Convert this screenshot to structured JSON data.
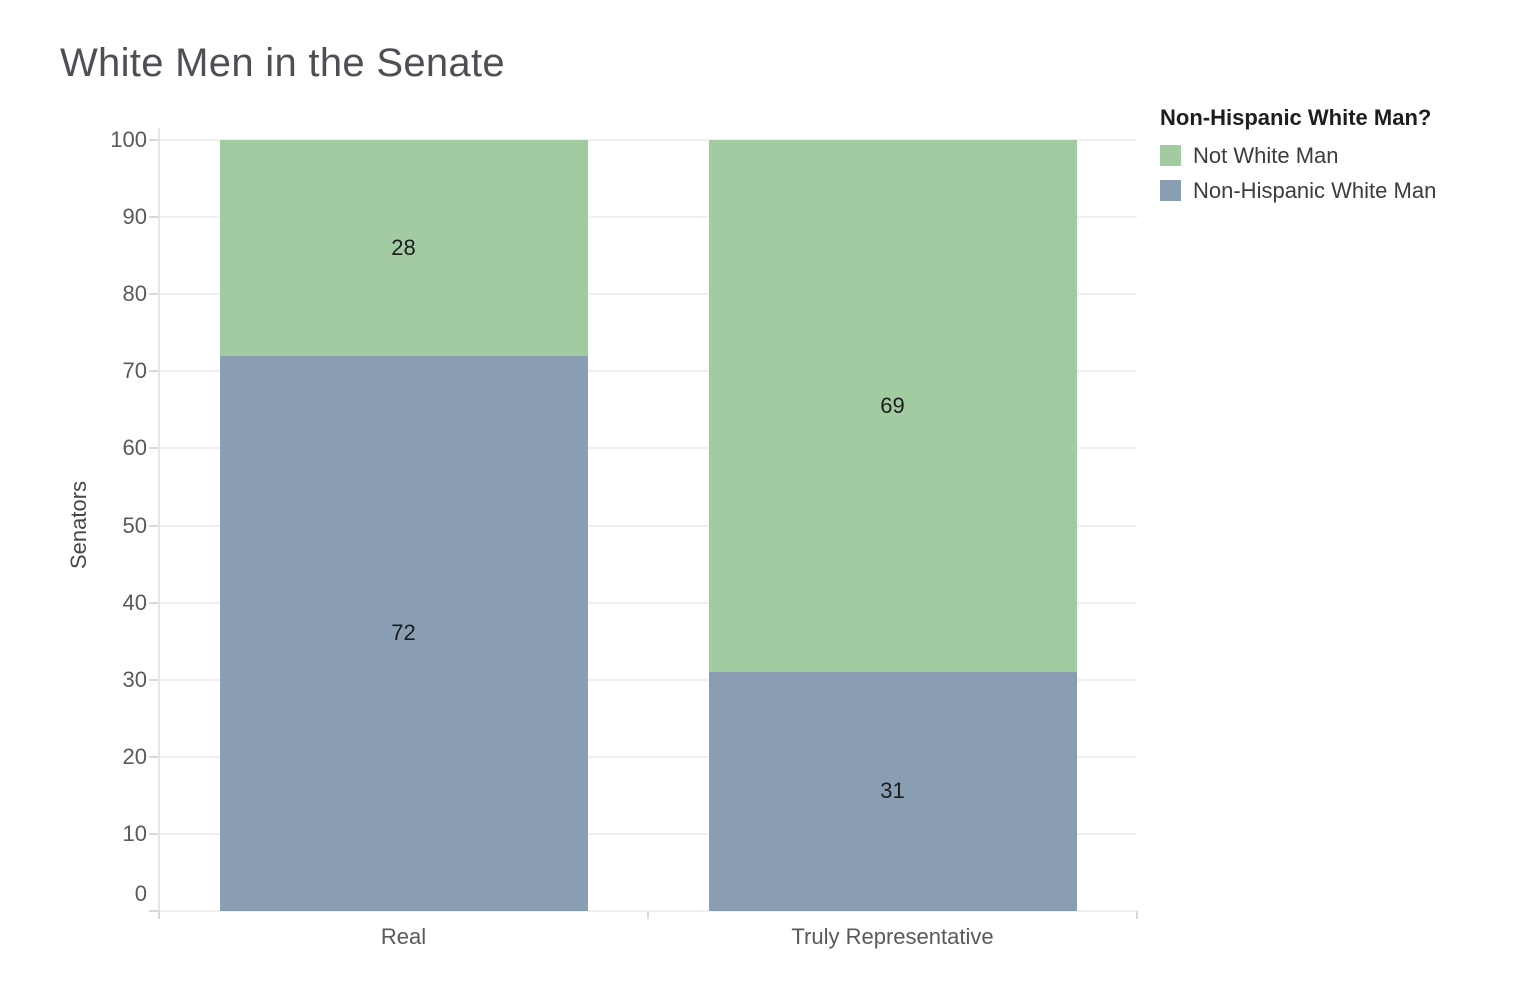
{
  "chart_data": {
    "type": "bar",
    "stacked": true,
    "title": "White Men in the Senate",
    "categories": [
      "Real",
      "Truly Representative"
    ],
    "series": [
      {
        "name": "Not White Man",
        "color": "#a2cba2",
        "values": [
          28,
          69
        ]
      },
      {
        "name": "Non-Hispanic White Man",
        "color": "#899eb2",
        "values": [
          72,
          31
        ]
      }
    ],
    "stack_order_bottom_to_top": [
      "Non-Hispanic White Man",
      "Not White Man"
    ],
    "xlabel": "",
    "ylabel": "Senators",
    "ylim": [
      0,
      100
    ],
    "ytick_step": 10,
    "yticks": [
      0,
      10,
      20,
      30,
      40,
      50,
      60,
      70,
      80,
      90,
      100
    ],
    "grid": "horizontal",
    "bar_value_labels": true,
    "legend": {
      "title": "Non-Hispanic White Man?",
      "position": "top-right",
      "items": [
        "Not White Man",
        "Non-Hispanic White Man"
      ]
    }
  }
}
